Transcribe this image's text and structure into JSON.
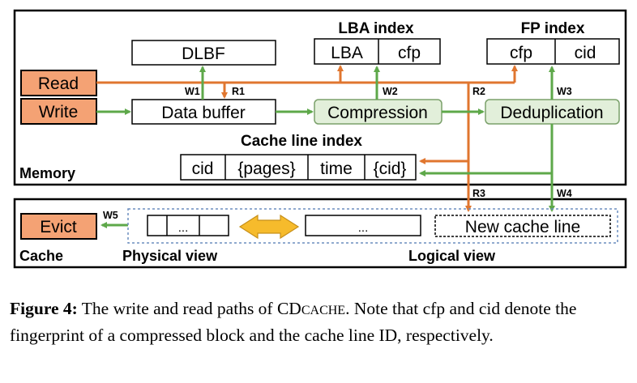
{
  "diagram": {
    "memory_label": "Memory",
    "cache_label": "Cache",
    "inputs": {
      "read": "Read",
      "write": "Write",
      "evict": "Evict"
    },
    "dlbf": "DLBF",
    "data_buffer": "Data buffer",
    "compression": "Compression",
    "deduplication": "Deduplication",
    "lba_index": {
      "title": "LBA index",
      "fields": [
        "LBA",
        "cfp"
      ]
    },
    "fp_index": {
      "title": "FP index",
      "fields": [
        "cfp",
        "cid"
      ]
    },
    "cache_line_index": {
      "title": "Cache line index",
      "fields": [
        "cid",
        "{pages}",
        "time",
        "{cid}"
      ]
    },
    "edges": {
      "w1": "W1",
      "r1": "R1",
      "w2": "W2",
      "r2": "R2",
      "w3": "W3",
      "r3": "R3",
      "w4": "W4",
      "w5": "W5"
    },
    "physical_ellipsis": "...",
    "logical_ellipsis": "...",
    "new_cache_line": "New cache line",
    "physical_view": "Physical view",
    "logical_view": "Logical view",
    "colors": {
      "orange": "#f4a274",
      "green_fill": "#e2efda",
      "orange_arrow": "#e0762f",
      "green_arrow": "#5ea84a",
      "double_arrow": "#f6bb2c"
    }
  },
  "caption": {
    "figure_label": "Figure 4:",
    "text_before": " The write and read paths of CD",
    "smallcaps": "CACHE",
    "text_after": ". Note that cfp and cid denote the fingerprint of a compressed block and the cache line ID, respectively."
  }
}
